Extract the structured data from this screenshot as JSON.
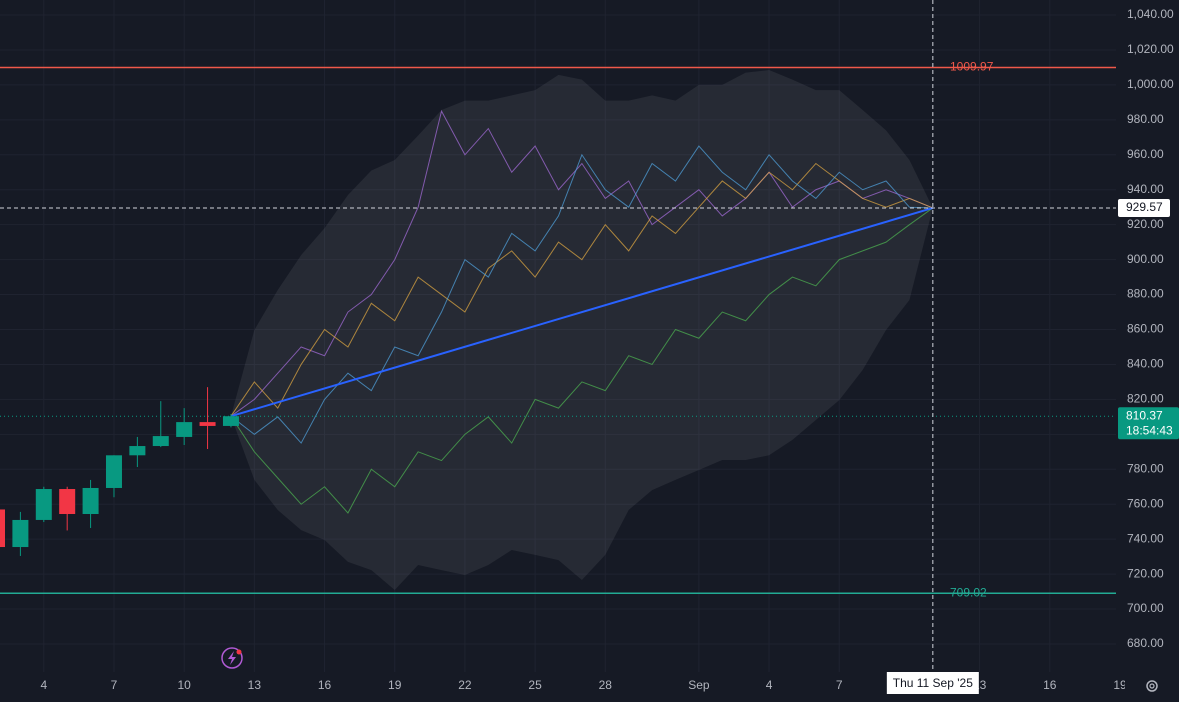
{
  "chart_data": {
    "type": "candlestick",
    "xlim": [
      "2025-08-02",
      "2025-09-19"
    ],
    "xticks": [
      {
        "value": "2025-08-04",
        "label": "4"
      },
      {
        "value": "2025-08-07",
        "label": "7"
      },
      {
        "value": "2025-08-10",
        "label": "10"
      },
      {
        "value": "2025-08-13",
        "label": "13"
      },
      {
        "value": "2025-08-16",
        "label": "16"
      },
      {
        "value": "2025-08-19",
        "label": "19"
      },
      {
        "value": "2025-08-22",
        "label": "22"
      },
      {
        "value": "2025-08-25",
        "label": "25"
      },
      {
        "value": "2025-08-28",
        "label": "28"
      },
      {
        "value": "2025-09-01",
        "label": "Sep"
      },
      {
        "value": "2025-09-04",
        "label": "4"
      },
      {
        "value": "2025-09-07",
        "label": "7"
      },
      {
        "value": "2025-09-13",
        "label": "13"
      },
      {
        "value": "2025-09-16",
        "label": "16"
      },
      {
        "value": "2025-09-19",
        "label": "19"
      }
    ],
    "ylim": [
      670,
      1048
    ],
    "yticks": [
      {
        "value": 680,
        "label": "680.00"
      },
      {
        "value": 700,
        "label": "700.00"
      },
      {
        "value": 720,
        "label": "720.00"
      },
      {
        "value": 740,
        "label": "740.00"
      },
      {
        "value": 760,
        "label": "760.00"
      },
      {
        "value": 780,
        "label": "780.00"
      },
      {
        "value": 800,
        "label": "800.00"
      },
      {
        "value": 820,
        "label": "820.00"
      },
      {
        "value": 840,
        "label": "840.00"
      },
      {
        "value": 860,
        "label": "860.00"
      },
      {
        "value": 880,
        "label": "880.00"
      },
      {
        "value": 900,
        "label": "900.00"
      },
      {
        "value": 920,
        "label": "920.00"
      },
      {
        "value": 940,
        "label": "940.00"
      },
      {
        "value": 960,
        "label": "960.00"
      },
      {
        "value": 980,
        "label": "980.00"
      },
      {
        "value": 1000,
        "label": "1,000.00"
      },
      {
        "value": 1020,
        "label": "1,020.00"
      },
      {
        "value": 1040,
        "label": "1,040.00"
      }
    ],
    "grid": true,
    "candles": {
      "up_color": "#089981",
      "down_color": "#f23645",
      "x": [
        "2025-08-02",
        "2025-08-03",
        "2025-08-04",
        "2025-08-05",
        "2025-08-06",
        "2025-08-07",
        "2025-08-08",
        "2025-08-09",
        "2025-08-10",
        "2025-08-11",
        "2025-08-12"
      ],
      "open": [
        757,
        735.5,
        751,
        768.7,
        754.4,
        769.3,
        788,
        793.3,
        798.5,
        807,
        804.8
      ],
      "high": [
        757,
        755.6,
        770,
        770,
        773.9,
        788,
        798.5,
        819,
        815,
        827,
        811.6
      ],
      "low": [
        735.5,
        730.4,
        749.8,
        745,
        746.4,
        764,
        781.3,
        792.7,
        793.9,
        791.6,
        804
      ],
      "close": [
        735.5,
        751,
        768.7,
        754.4,
        769.3,
        788,
        793.3,
        799,
        807,
        804.8,
        810.37
      ]
    },
    "hlines": [
      {
        "value": 1009.97,
        "label": "1009.97",
        "color": "#f0584a"
      },
      {
        "value": 709.02,
        "label": "709.02",
        "color": "#22ab94"
      }
    ],
    "simulation": {
      "x": [
        "2025-08-12",
        "2025-08-13",
        "2025-08-14",
        "2025-08-15",
        "2025-08-16",
        "2025-08-17",
        "2025-08-18",
        "2025-08-19",
        "2025-08-20",
        "2025-08-21",
        "2025-08-22",
        "2025-08-23",
        "2025-08-24",
        "2025-08-25",
        "2025-08-26",
        "2025-08-27",
        "2025-08-28",
        "2025-08-29",
        "2025-08-30",
        "2025-08-31",
        "2025-09-01",
        "2025-09-02",
        "2025-09-03",
        "2025-09-04",
        "2025-09-05",
        "2025-09-06",
        "2025-09-07",
        "2025-09-08",
        "2025-09-09",
        "2025-09-10",
        "2025-09-11"
      ],
      "envelope_upper": [
        810.37,
        859.7,
        882.6,
        902.6,
        918,
        937,
        951,
        957,
        971,
        985.6,
        991,
        991,
        994,
        997,
        1005.7,
        1003,
        991,
        991,
        994,
        991,
        1000,
        1000,
        1007,
        1008.5,
        1003,
        997,
        997,
        985.6,
        974,
        957,
        929.57
      ],
      "envelope_lower": [
        810.37,
        773.9,
        756.7,
        745.2,
        739.5,
        727,
        722.3,
        710.9,
        725.2,
        722.3,
        719.5,
        725.2,
        733.8,
        731,
        728,
        716.6,
        731,
        756.7,
        768.1,
        773.9,
        779.6,
        785.3,
        785.3,
        788,
        796.8,
        808.2,
        819.6,
        836.8,
        859.7,
        876.9,
        929.57
      ],
      "paths": [
        {
          "color": "#a26bd6",
          "values": [
            810.37,
            820,
            835,
            850,
            845,
            870,
            880,
            900,
            930,
            985,
            960,
            975,
            950,
            965,
            940,
            955,
            935,
            945,
            920,
            930,
            940,
            925,
            935,
            950,
            930,
            940,
            945,
            935,
            940,
            935,
            929.57
          ]
        },
        {
          "color": "#4caf50",
          "values": [
            810.37,
            790,
            775,
            760,
            770,
            755,
            780,
            770,
            790,
            785,
            800,
            810,
            795,
            820,
            815,
            830,
            825,
            845,
            840,
            860,
            855,
            870,
            865,
            880,
            890,
            885,
            900,
            905,
            910,
            920,
            929.57
          ]
        },
        {
          "color": "#d9a441",
          "values": [
            810.37,
            830,
            815,
            840,
            860,
            850,
            875,
            865,
            890,
            880,
            870,
            895,
            905,
            890,
            910,
            900,
            920,
            905,
            925,
            915,
            930,
            945,
            935,
            950,
            940,
            955,
            945,
            935,
            930,
            935,
            929.57
          ]
        },
        {
          "color": "#4f9fd8",
          "values": [
            810.37,
            800,
            810,
            795,
            820,
            835,
            825,
            850,
            845,
            870,
            900,
            890,
            915,
            905,
            925,
            960,
            940,
            930,
            955,
            945,
            965,
            950,
            940,
            960,
            945,
            935,
            950,
            940,
            945,
            930,
            929.57
          ]
        }
      ],
      "mean": {
        "x": [
          "2025-08-12",
          "2025-09-11"
        ],
        "values": [
          810.37,
          929.57
        ],
        "color": "#2962ff"
      }
    },
    "crosshair": {
      "x": "2025-09-11",
      "x_label": "Thu 11 Sep '25",
      "y": 929.57,
      "y_label": "929.57"
    },
    "last_price": {
      "value": 810.37,
      "label": "810.37",
      "countdown": "18:54:43",
      "color": "#089981"
    }
  }
}
